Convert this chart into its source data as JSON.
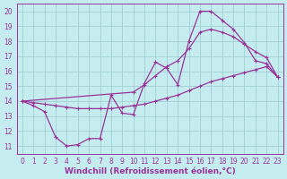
{
  "xlabel": "Windchill (Refroidissement éolien,°C)",
  "xlim": [
    -0.5,
    23.5
  ],
  "ylim": [
    10.5,
    20.5
  ],
  "xticks": [
    0,
    1,
    2,
    3,
    4,
    5,
    6,
    7,
    8,
    9,
    10,
    11,
    12,
    13,
    14,
    15,
    16,
    17,
    18,
    19,
    20,
    21,
    22,
    23
  ],
  "yticks": [
    11,
    12,
    13,
    14,
    15,
    16,
    17,
    18,
    19,
    20
  ],
  "bg_color": "#c5edf0",
  "grid_color": "#a0d0d4",
  "line_color": "#993399",
  "line1_x": [
    0,
    1,
    2,
    3,
    4,
    5,
    6,
    7,
    8,
    9,
    10,
    11,
    12,
    13,
    14,
    15,
    16,
    17,
    18,
    19,
    20,
    21,
    22,
    23
  ],
  "line1_y": [
    14.0,
    13.7,
    13.3,
    11.6,
    11.0,
    11.1,
    11.5,
    11.5,
    14.4,
    13.2,
    13.1,
    15.2,
    16.6,
    16.2,
    15.1,
    18.0,
    20.0,
    20.0,
    19.4,
    18.8,
    17.9,
    16.7,
    16.5,
    15.6
  ],
  "line2_x": [
    0,
    10,
    11,
    12,
    13,
    14,
    15,
    16,
    17,
    18,
    19,
    20,
    21,
    22,
    23
  ],
  "line2_y": [
    14.0,
    14.6,
    15.1,
    15.7,
    16.3,
    16.7,
    17.5,
    18.6,
    18.8,
    18.6,
    18.3,
    17.8,
    17.3,
    16.9,
    15.6
  ],
  "line3_x": [
    0,
    1,
    2,
    3,
    4,
    5,
    6,
    7,
    8,
    9,
    10,
    11,
    12,
    13,
    14,
    15,
    16,
    17,
    18,
    19,
    20,
    21,
    22,
    23
  ],
  "line3_y": [
    14.0,
    13.9,
    13.8,
    13.7,
    13.6,
    13.5,
    13.5,
    13.5,
    13.5,
    13.6,
    13.7,
    13.8,
    14.0,
    14.2,
    14.4,
    14.7,
    15.0,
    15.3,
    15.5,
    15.7,
    15.9,
    16.1,
    16.3,
    15.6
  ],
  "tick_fontsize": 5.5,
  "label_fontsize": 6.5
}
